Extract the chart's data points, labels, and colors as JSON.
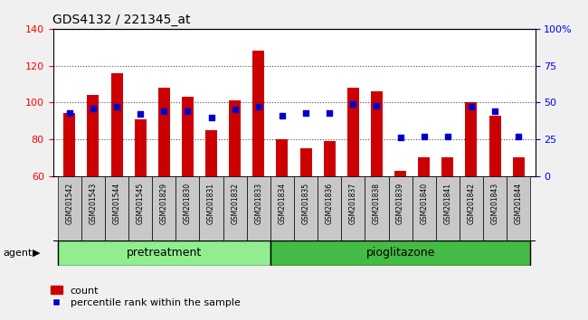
{
  "title": "GDS4132 / 221345_at",
  "categories": [
    "GSM201542",
    "GSM201543",
    "GSM201544",
    "GSM201545",
    "GSM201829",
    "GSM201830",
    "GSM201831",
    "GSM201832",
    "GSM201833",
    "GSM201834",
    "GSM201835",
    "GSM201836",
    "GSM201837",
    "GSM201838",
    "GSM201839",
    "GSM201840",
    "GSM201841",
    "GSM201842",
    "GSM201843",
    "GSM201844"
  ],
  "bar_values": [
    94,
    104,
    116,
    91,
    108,
    103,
    85,
    101,
    128,
    80,
    75,
    79,
    108,
    106,
    63,
    70,
    70,
    100,
    93,
    70
  ],
  "dot_values_pct": [
    43,
    46,
    47,
    42,
    44,
    44,
    40,
    45,
    47,
    41,
    43,
    43,
    49,
    48,
    26,
    27,
    27,
    47,
    44,
    27
  ],
  "ylim_left": [
    60,
    140
  ],
  "ylim_right": [
    0,
    100
  ],
  "yticks_left": [
    60,
    80,
    100,
    120,
    140
  ],
  "yticks_right": [
    0,
    25,
    50,
    75,
    100
  ],
  "ytick_labels_right": [
    "0",
    "25",
    "50",
    "75",
    "100%"
  ],
  "bar_color": "#cc0000",
  "dot_color": "#0000cc",
  "group1_label": "pretreatment",
  "group1_count": 9,
  "group2_label": "pioglitazone",
  "group2_count": 11,
  "group1_color": "#90ee90",
  "group2_color": "#44bb44",
  "agent_label": "agent",
  "legend_count_label": "count",
  "legend_pct_label": "percentile rank within the sample",
  "bar_width": 0.5,
  "ticklabel_bg_color": "#c8c8c8",
  "plot_bg_color": "#ffffff",
  "fig_bg_color": "#f0f0f0"
}
